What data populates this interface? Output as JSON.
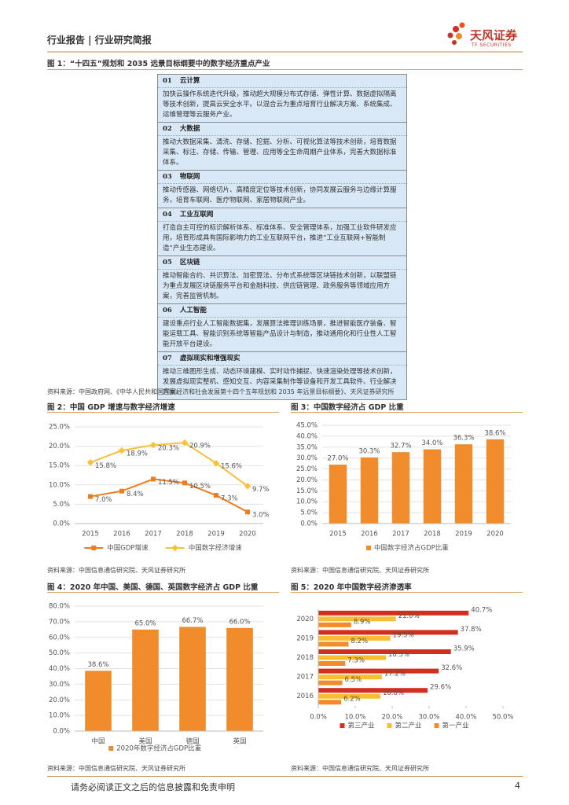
{
  "header": {
    "left_title": "行业报告 | 行业研究简报",
    "logo_name": "天风证券",
    "logo_sub": "TF SECURITIES"
  },
  "figure1": {
    "title": "图 1：“十四五”规划和 2035 远景目标纲要中的数字经济重点产业",
    "sections": [
      {
        "num": "01",
        "name": "云计算",
        "text": "加快云操作系统迭代升级，推动超大规模分布式存储、弹性计算、数据虚拟隔离等技术创新，提高云安全水平。以混合云为重点培育行业解决方案、系统集成、运维管理等云服务产业。"
      },
      {
        "num": "02",
        "name": "大数据",
        "text": "推动大数据采集、清洗、存储、挖掘、分析、可视化算法等技术创新，培育数据采集、标注、存储、传输、管理、应用等全生命周期产业体系，完善大数据标准体系。"
      },
      {
        "num": "03",
        "name": "物联网",
        "text": "推动传感器、网络切片、高精度定位等技术创新，协同发展云服务与边缘计算服务，培育车联网、医疗物联网、家居物联网产业。"
      },
      {
        "num": "04",
        "name": "工业互联网",
        "text": "打造自主可控的标识解析体系、标准体系、安全管理体系，加强工业软件研发应用，培育形成具有国际影响力的工业互联网平台，推进“工业互联网+智能制造”产业生态建设。"
      },
      {
        "num": "05",
        "name": "区块链",
        "text": "推动智能合约、共识算法、加密算法、分布式系统等区块链技术创新，以联盟链为重点发展区块链服务平台和金融科技、供应链管理、政务服务等领域应用方案，完善监管机制。"
      },
      {
        "num": "06",
        "name": "人工智能",
        "text": "建设重点行业人工智能数据集，发展算法推理训练场景，推进智能医疗装备、智能运载工具、智能识别系统等智能产品设计与制造，推动通用化和行业性人工智能开放平台建设。"
      },
      {
        "num": "07",
        "name": "虚拟现实和增强现实",
        "text": "推动三维图形生成、动态环境建模、实时动作捕捉、快速渲染处理等技术创新，发展虚拟现实整机、感知交互、内容采集制作等设备和开发工具软件、行业解决方案。"
      }
    ],
    "source": "资料来源：中国政府网、《中华人民共和国国民经济和社会发展第十四个五年规划和 2035 年远景目标纲要》、天风证券研究所"
  },
  "chart_data": [
    {
      "type": "line",
      "title": "图 2：中国 GDP 增速与数字经济增速",
      "categories": [
        "2015",
        "2016",
        "2017",
        "2018",
        "2019",
        "2020"
      ],
      "series": [
        {
          "name": "中国GDP增速",
          "color": "#ee7d21",
          "values": [
            7.0,
            8.4,
            11.5,
            10.5,
            7.3,
            3.0
          ],
          "value_labels": [
            "7.0%",
            "8.4%",
            "11.5%",
            "10.5%",
            "7.3%",
            "3.0%"
          ]
        },
        {
          "name": "中国数字经济增速",
          "color": "#fbbf3a",
          "values": [
            15.8,
            18.9,
            20.3,
            20.9,
            15.6,
            9.7
          ],
          "value_labels": [
            "15.8%",
            "18.9%",
            "20.3%",
            "20.9%",
            "15.6%",
            "9.7%"
          ]
        }
      ],
      "ylim": [
        0,
        25
      ],
      "yticks": [
        {
          "value": 0,
          "label": "0.0%"
        },
        {
          "value": 5,
          "label": "5.0%"
        },
        {
          "value": 10,
          "label": "10.0%"
        },
        {
          "value": 15,
          "label": "15.0%"
        },
        {
          "value": 20,
          "label": "20.0%"
        },
        {
          "value": 25,
          "label": "25.0%"
        }
      ],
      "grid": true,
      "source": "资料来源：中国信息通信研究院、天风证券研究所"
    },
    {
      "type": "bar",
      "title": "图 3：中国数字经济占 GDP 比重",
      "categories": [
        "2015",
        "2016",
        "2017",
        "2018",
        "2019",
        "2020"
      ],
      "series": [
        {
          "name": "中国数字经济占GDP比重",
          "color": "#f08c2b",
          "values": [
            27.0,
            30.3,
            32.7,
            34.0,
            36.3,
            38.6
          ],
          "value_labels": [
            "27.0%",
            "30.3%",
            "32.7%",
            "34.0%",
            "36.3%",
            "38.6%"
          ]
        }
      ],
      "ylim": [
        0,
        45
      ],
      "yticks": [
        {
          "value": 0,
          "label": "0.0%"
        },
        {
          "value": 5,
          "label": "5.0%"
        },
        {
          "value": 10,
          "label": "10.0%"
        },
        {
          "value": 15,
          "label": "15.0%"
        },
        {
          "value": 20,
          "label": "20.0%"
        },
        {
          "value": 25,
          "label": "25.0%"
        },
        {
          "value": 30,
          "label": "30.0%"
        },
        {
          "value": 35,
          "label": "35.0%"
        },
        {
          "value": 40,
          "label": "40.0%"
        },
        {
          "value": 45,
          "label": "45.0%"
        }
      ],
      "grid": true,
      "source": "资料来源：中国信息通信研究院、天风证券研究所"
    },
    {
      "type": "bar",
      "title": "图 4：2020 年中国、美国、德国、英国数字经济占 GDP 比重",
      "categories": [
        "中国",
        "美国",
        "德国",
        "英国"
      ],
      "series": [
        {
          "name": "2020年数字经济占GDP比重",
          "color": "#f08c2b",
          "values": [
            38.6,
            65.0,
            66.7,
            66.0
          ],
          "value_labels": [
            "38.6%",
            "65.0%",
            "66.7%",
            "66.0%"
          ]
        }
      ],
      "ylim": [
        0,
        80
      ],
      "yticks": [
        {
          "value": 0,
          "label": "0.0%"
        },
        {
          "value": 10,
          "label": "10.0%"
        },
        {
          "value": 20,
          "label": "20.0%"
        },
        {
          "value": 30,
          "label": "30.0%"
        },
        {
          "value": 40,
          "label": "40.0%"
        },
        {
          "value": 50,
          "label": "50.0%"
        },
        {
          "value": 60,
          "label": "60.0%"
        },
        {
          "value": 70,
          "label": "70.0%"
        },
        {
          "value": 80,
          "label": "80.0%"
        }
      ],
      "grid": true,
      "source": "资料来源：中国信息通信研究院、天风证券研究所"
    },
    {
      "type": "barh",
      "title": "图 5：2020 年中国数字经济渗透率",
      "categories": [
        "2020",
        "2019",
        "2018",
        "2017",
        "2016"
      ],
      "series": [
        {
          "name": "第三产业",
          "color": "#d32f1f",
          "values": [
            40.7,
            37.8,
            35.9,
            32.6,
            29.6
          ],
          "value_labels": [
            "40.7%",
            "37.8%",
            "35.9%",
            "32.6%",
            "29.6%"
          ]
        },
        {
          "name": "第二产业",
          "color": "#f9bd31",
          "values": [
            21.0,
            19.5,
            18.3,
            17.2,
            16.8
          ],
          "value_labels": [
            "21.0%",
            "19.5%",
            "18.3%",
            "17.2%",
            "16.8%"
          ]
        },
        {
          "name": "第一产业",
          "color": "#f08c2b",
          "values": [
            8.9,
            8.2,
            7.3,
            6.5,
            6.2
          ],
          "value_labels": [
            "8.9%",
            "8.2%",
            "7.3%",
            "6.5%",
            "6.2%"
          ]
        }
      ],
      "xlim": [
        0,
        50
      ],
      "xticks": [
        {
          "value": 0,
          "label": "0.0%"
        },
        {
          "value": 10,
          "label": "10.0%"
        },
        {
          "value": 20,
          "label": "20.0%"
        },
        {
          "value": 30,
          "label": "30.0%"
        },
        {
          "value": 40,
          "label": "40.0%"
        },
        {
          "value": 50,
          "label": "50.0%"
        }
      ],
      "grid": false,
      "source": "资料来源：中国信息通信研究院、天风证券研究所"
    }
  ],
  "footer": {
    "disclaimer": "请务必阅读正文之后的信息披露和免责申明",
    "page": "4"
  }
}
